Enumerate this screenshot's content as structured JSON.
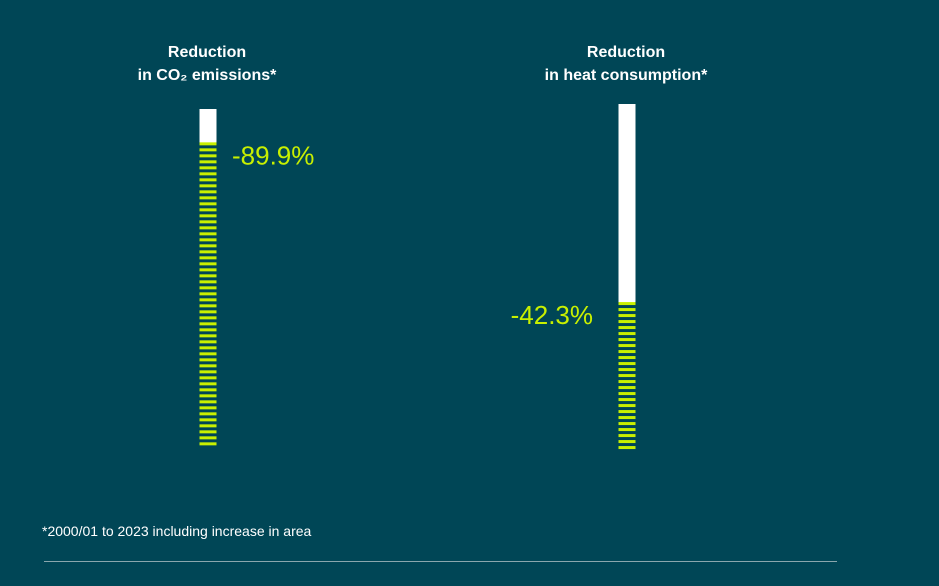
{
  "chart_data": [
    {
      "type": "bar",
      "title_line1": "Reduction",
      "title_line2": "in CO₂ emissions*",
      "value": -89.9,
      "value_label": "-89.9%",
      "ylim": [
        0,
        100
      ]
    },
    {
      "type": "bar",
      "title_line1": "Reduction",
      "title_line2": "in heat consumption*",
      "value": -42.3,
      "value_label": "-42.3%",
      "ylim": [
        0,
        100
      ]
    }
  ],
  "colors": {
    "background": "#004656",
    "reduction": "#c8f000",
    "remaining": "#ffffff"
  },
  "footnote": "*2000/01 to 2023 including increase in area"
}
